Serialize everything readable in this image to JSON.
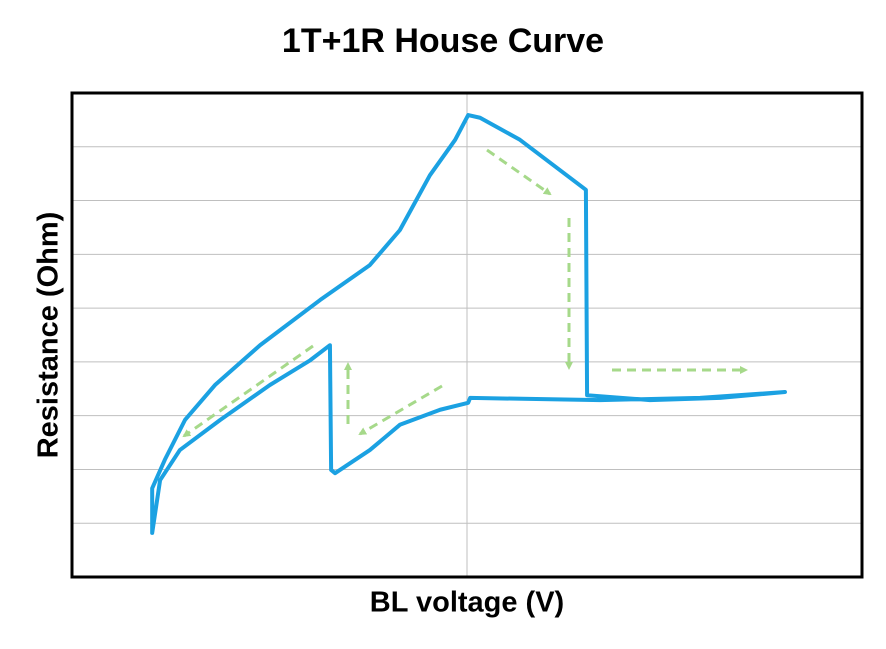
{
  "chart_data": {
    "type": "line",
    "title": "1T+1R House Curve",
    "x_label": "BL voltage (V)",
    "y_label": "Resistance (Ohm)",
    "x": [
      -0.797,
      -0.797,
      -0.765,
      -0.714,
      -0.638,
      -0.524,
      -0.372,
      -0.246,
      -0.17,
      -0.094,
      -0.03,
      0.003,
      0.033,
      0.134,
      0.301,
      0.304,
      0.463,
      0.641,
      0.805,
      0.59,
      0.337,
      0.008,
      0.003,
      -0.068,
      -0.17,
      -0.246,
      -0.334,
      -0.344,
      -0.347,
      -0.397,
      -0.499,
      -0.625,
      -0.727,
      -0.777,
      -0.797
    ],
    "series": [
      {
        "color": "#1ba1e2",
        "values": [
          0.82,
          1.65,
          2.18,
          2.92,
          3.57,
          4.31,
          5.15,
          5.8,
          6.45,
          7.47,
          8.13,
          8.59,
          8.54,
          8.13,
          7.2,
          3.38,
          3.29,
          3.33,
          3.44,
          3.33,
          3.29,
          3.33,
          3.24,
          3.11,
          2.83,
          2.36,
          1.93,
          1.99,
          4.31,
          4.03,
          3.57,
          2.92,
          2.36,
          1.8,
          0.82
        ]
      }
    ],
    "xlim": [
      -1,
      1
    ],
    "xticks": [
      0
    ],
    "ylim": [
      0,
      9
    ],
    "yticks": [
      1,
      2,
      3,
      4,
      5,
      6,
      7,
      8
    ],
    "grid": true
  }
}
